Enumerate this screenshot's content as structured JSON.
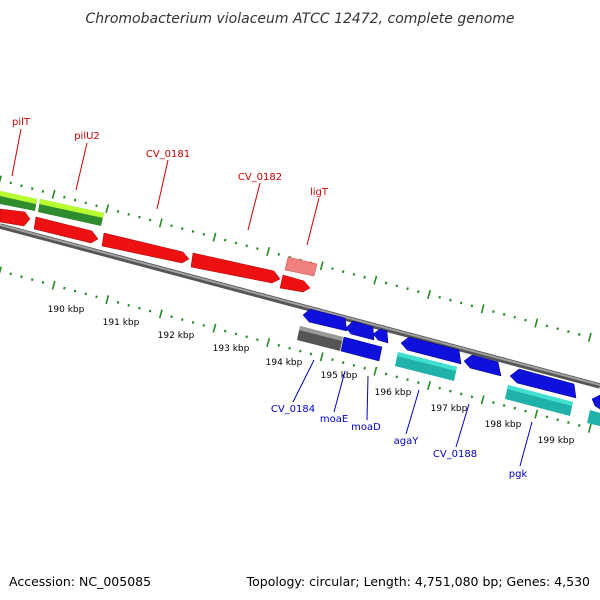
{
  "title": "Chromobacterium violaceum ATCC 12472, complete genome",
  "footer": {
    "accession": "Accession: NC_005085",
    "stats": "Topology: circular; Length: 4,751,080 bp; Genes: 4,530"
  },
  "colors": {
    "forward_label": "#cc0000",
    "reverse_label": "#0000cc",
    "tick_mark": "#228b22",
    "backbone": "#888888"
  },
  "kbp_ticks": [
    "190 kbp",
    "191 kbp",
    "192 kbp",
    "193 kbp",
    "194 kbp",
    "195 kbp",
    "196 kbp",
    "197 kbp",
    "198 kbp",
    "199 kbp"
  ],
  "forward_gene_labels": [
    "pilT",
    "pilU2",
    "CV_0181",
    "CV_0182",
    "ligT"
  ],
  "reverse_gene_labels": [
    "CV_0184",
    "moaE",
    "moaD",
    "agaY",
    "CV_0188",
    "pgk"
  ]
}
